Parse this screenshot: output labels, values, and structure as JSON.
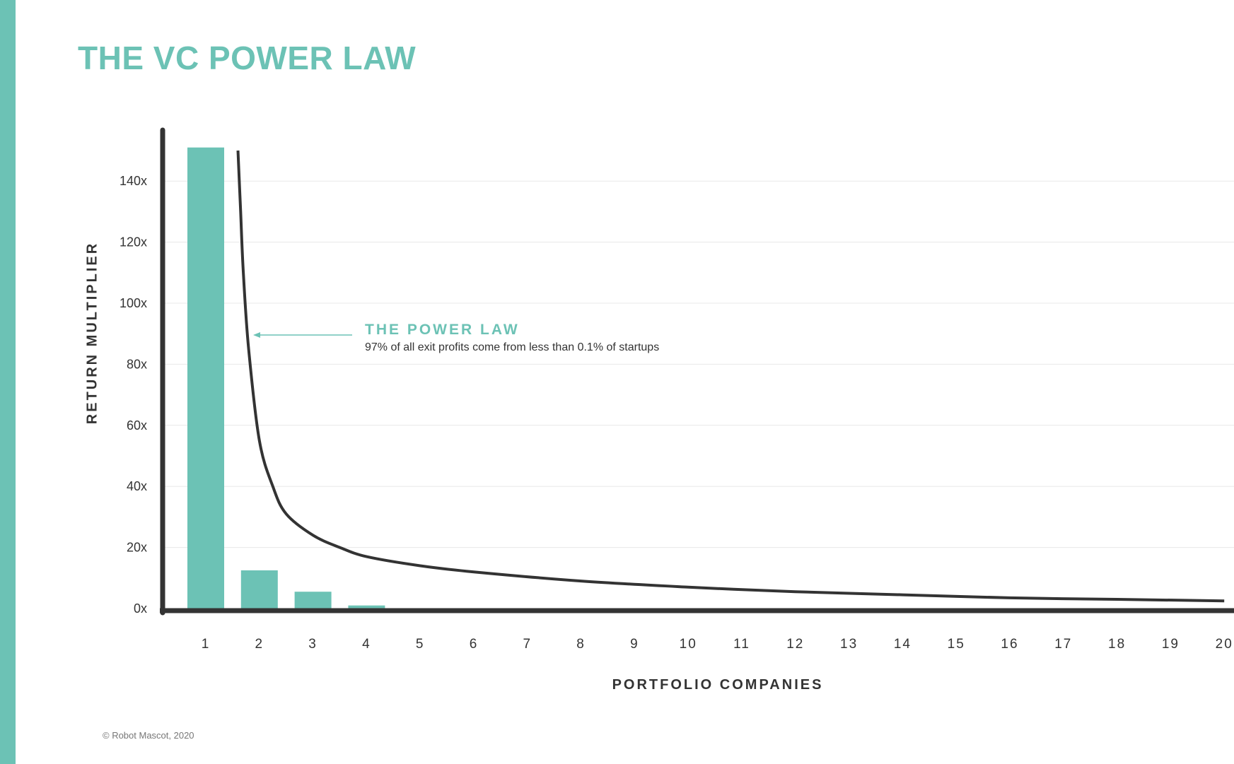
{
  "page": {
    "title": "THE VC POWER LAW",
    "footer": "© Robot Mascot, 2020"
  },
  "colors": {
    "accent": "#6cc2b5",
    "axis": "#333333",
    "grid": "#e8e8e8"
  },
  "chart_data": {
    "type": "bar",
    "title": "THE VC POWER LAW",
    "xlabel": "PORTFOLIO COMPANIES",
    "ylabel": "RETURN MULTIPLIER",
    "categories": [
      "1",
      "2",
      "3",
      "4",
      "5",
      "6",
      "7",
      "8",
      "9",
      "10",
      "11",
      "12",
      "13",
      "14",
      "15",
      "16",
      "17",
      "18",
      "19",
      "20"
    ],
    "values": [
      151,
      12.5,
      5.5,
      1,
      0,
      0,
      0,
      0,
      0,
      0,
      0,
      0,
      0,
      0,
      0,
      0,
      0,
      0,
      0,
      0
    ],
    "yticks": [
      "0x",
      "20x",
      "40x",
      "60x",
      "80x",
      "100x",
      "120x",
      "140x"
    ],
    "ylim": [
      0,
      160
    ],
    "grid": true,
    "curve": {
      "name": "THE POWER LAW",
      "x": [
        1.6,
        1.65,
        1.7,
        1.8,
        2,
        2.25,
        2.5,
        3,
        3.5,
        4,
        5,
        6,
        8,
        10,
        12,
        14,
        16,
        18,
        20
      ],
      "y": [
        150,
        130,
        110,
        85,
        55,
        40,
        31,
        24,
        20,
        17,
        14,
        12,
        9,
        7,
        5.5,
        4.5,
        3.5,
        3,
        2.5
      ]
    },
    "annotation": {
      "title": "THE POWER LAW",
      "text": "97% of all exit profits come from less than 0.1% of startups"
    }
  }
}
